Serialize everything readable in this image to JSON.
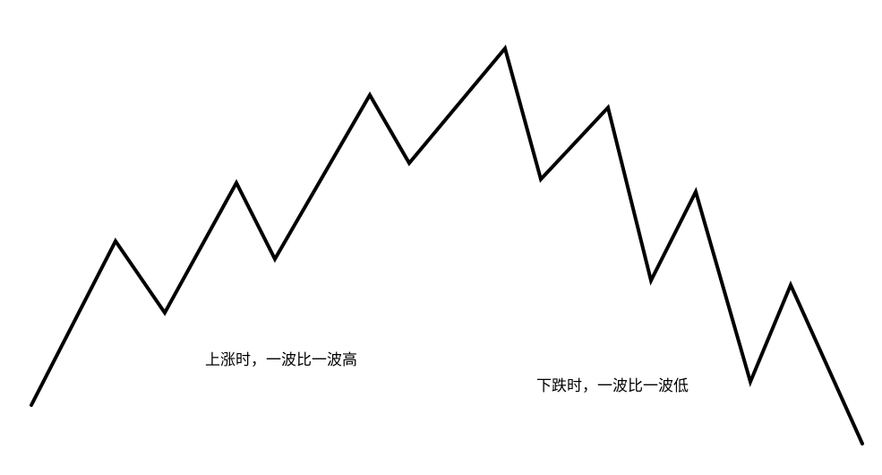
{
  "diagram": {
    "line_color": "#000000",
    "background_color": "#ffffff",
    "waves": [
      {
        "name": "uptrend",
        "description_label": "上涨时，一波比一波高"
      },
      {
        "name": "downtrend",
        "description_label": "下跌时，一波比一波低"
      }
    ]
  }
}
